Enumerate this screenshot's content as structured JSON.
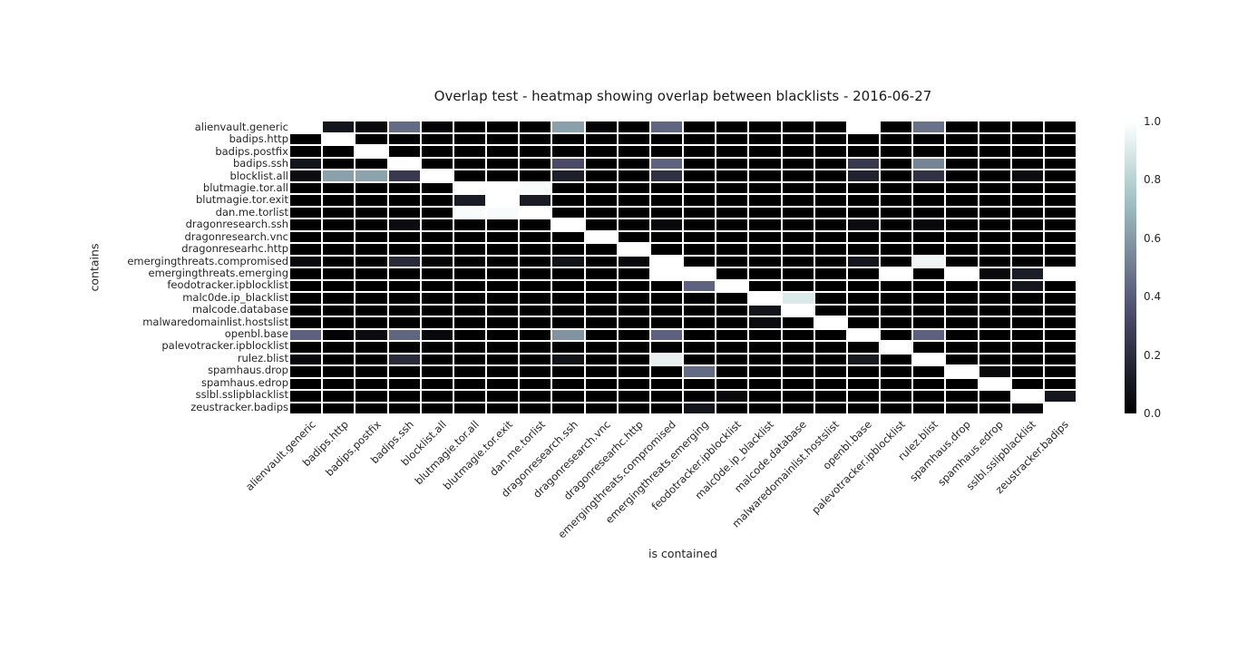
{
  "figure": {
    "background": "#ffffff",
    "text_color": "#262626"
  },
  "chart_data": {
    "type": "heatmap",
    "title": "Overlap test - heatmap showing overlap between blacklists - 2016-06-27",
    "xlabel": "is contained",
    "ylabel": "contains",
    "colormap": "bone",
    "value_range": [
      0.0,
      1.0
    ],
    "grid_gap_color": "#ffffff",
    "categories": [
      "alienvault.generic",
      "badips.http",
      "badips.postfix",
      "badips.ssh",
      "blocklist.all",
      "blutmagie.tor.all",
      "blutmagie.tor.exit",
      "dan.me.torlist",
      "dragonresearch.ssh",
      "dragonresearch.vnc",
      "dragonresearhc.http",
      "emergingthreats.compromised",
      "emergingthreats.emerging",
      "feodotracker.ipblocklist",
      "malc0de.ip_blacklist",
      "malcode.database",
      "malwaredomainlist.hostslist",
      "openbl.base",
      "palevotracker.ipblocklist",
      "rulez.blist",
      "spamhaus.drop",
      "spamhaus.edrop",
      "sslbl.sslipblacklist",
      "zeustracker.badips"
    ],
    "matrix": [
      [
        1,
        0.09,
        0.04,
        0.45,
        0.02,
        0,
        0,
        0,
        0.62,
        0.02,
        0,
        0.43,
        0,
        0,
        0,
        0,
        0,
        1,
        0,
        0.47,
        0,
        0,
        0,
        0
      ],
      [
        0,
        1,
        0,
        0,
        0,
        0,
        0,
        0,
        0,
        0,
        0,
        0,
        0,
        0,
        0,
        0,
        0,
        0,
        0,
        0,
        0,
        0,
        0,
        0
      ],
      [
        0,
        0,
        1,
        0,
        0,
        0,
        0,
        0,
        0,
        0,
        0,
        0,
        0,
        0,
        0,
        0,
        0,
        0,
        0,
        0,
        0,
        0,
        0,
        0
      ],
      [
        0.09,
        0,
        0,
        1,
        0,
        0,
        0,
        0,
        0.33,
        0,
        0,
        0.42,
        0,
        0,
        0,
        0,
        0,
        0.25,
        0,
        0.53,
        0,
        0,
        0,
        0
      ],
      [
        0.05,
        0.62,
        0.63,
        0.25,
        1,
        0,
        0,
        0,
        0.14,
        0,
        0,
        0.22,
        0,
        0,
        0,
        0,
        0,
        0.15,
        0,
        0.22,
        0,
        0,
        0.05,
        0
      ],
      [
        0,
        0,
        0,
        0,
        0,
        1,
        1,
        0.98,
        0,
        0,
        0,
        0,
        0,
        0,
        0,
        0,
        0,
        0,
        0,
        0,
        0,
        0,
        0,
        0
      ],
      [
        0,
        0,
        0,
        0,
        0,
        0.12,
        1,
        0.12,
        0,
        0,
        0,
        0,
        0,
        0,
        0,
        0,
        0,
        0,
        0,
        0,
        0,
        0,
        0,
        0
      ],
      [
        0,
        0,
        0,
        0,
        0,
        0.98,
        0.98,
        1,
        0,
        0,
        0,
        0,
        0,
        0,
        0,
        0,
        0,
        0,
        0,
        0,
        0,
        0,
        0,
        0
      ],
      [
        0,
        0,
        0,
        0.05,
        0,
        0,
        0,
        0,
        1,
        0,
        0,
        0.04,
        0,
        0,
        0,
        0,
        0,
        0.05,
        0,
        0.04,
        0,
        0,
        0,
        0
      ],
      [
        0,
        0,
        0,
        0,
        0,
        0,
        0,
        0,
        0,
        1,
        0,
        0,
        0,
        0,
        0,
        0,
        0,
        0,
        0,
        0,
        0,
        0,
        0,
        0
      ],
      [
        0,
        0,
        0,
        0,
        0,
        0,
        0,
        0,
        0,
        0,
        1,
        0,
        0,
        0,
        0,
        0,
        0,
        0,
        0,
        0,
        0,
        0,
        0,
        0
      ],
      [
        0.04,
        0,
        0,
        0.19,
        0.02,
        0,
        0,
        0,
        0.08,
        0,
        0.04,
        1,
        0,
        0,
        0,
        0,
        0,
        0.1,
        0,
        0.95,
        0,
        0,
        0,
        0
      ],
      [
        0,
        0,
        0,
        0,
        0,
        0,
        0,
        0,
        0,
        0,
        0,
        1,
        1,
        0,
        0,
        0,
        0,
        0,
        1,
        0,
        1,
        0.04,
        0.13,
        1
      ],
      [
        0,
        0,
        0,
        0,
        0,
        0,
        0,
        0,
        0,
        0,
        0,
        0,
        0.42,
        1,
        0,
        0,
        0,
        0,
        0,
        0,
        0,
        0,
        0.1,
        0
      ],
      [
        0,
        0,
        0,
        0,
        0,
        0,
        0,
        0,
        0,
        0,
        0,
        0,
        0,
        0,
        1,
        0.9,
        0,
        0,
        0,
        0,
        0,
        0,
        0,
        0
      ],
      [
        0,
        0,
        0,
        0,
        0,
        0,
        0,
        0,
        0,
        0,
        0,
        0,
        0,
        0,
        0.09,
        1,
        0,
        0,
        0,
        0,
        0,
        0,
        0,
        0
      ],
      [
        0,
        0,
        0,
        0,
        0,
        0,
        0,
        0,
        0,
        0,
        0,
        0,
        0,
        0,
        0.05,
        0,
        1,
        0,
        0,
        0,
        0,
        0,
        0,
        0
      ],
      [
        0.42,
        0.02,
        0.05,
        0.43,
        0.04,
        0,
        0,
        0,
        0.58,
        0,
        0,
        0.42,
        0,
        0,
        0,
        0,
        0,
        1,
        0,
        0.42,
        0,
        0,
        0,
        0
      ],
      [
        0,
        0,
        0,
        0,
        0,
        0,
        0,
        0,
        0,
        0,
        0,
        0,
        0,
        0,
        0,
        0,
        0,
        0,
        1,
        0,
        0,
        0,
        0,
        0
      ],
      [
        0.04,
        0,
        0,
        0.19,
        0,
        0,
        0,
        0,
        0.08,
        0,
        0,
        0.93,
        0,
        0,
        0,
        0,
        0,
        0.11,
        0,
        1,
        0,
        0,
        0,
        0
      ],
      [
        0,
        0,
        0,
        0,
        0,
        0,
        0,
        0,
        0,
        0,
        0,
        0,
        0.45,
        0,
        0,
        0,
        0,
        0,
        0,
        0,
        1,
        0.04,
        0,
        0
      ],
      [
        0,
        0,
        0,
        0,
        0,
        0,
        0,
        0,
        0,
        0,
        0,
        0,
        0,
        0,
        0,
        0,
        0,
        0,
        0,
        0,
        0,
        1,
        0,
        0
      ],
      [
        0,
        0,
        0,
        0,
        0,
        0,
        0,
        0,
        0,
        0,
        0,
        0,
        0,
        0.04,
        0,
        0,
        0,
        0,
        0,
        0,
        0,
        0,
        1,
        0.1
      ],
      [
        0,
        0,
        0,
        0,
        0,
        0,
        0,
        0,
        0,
        0,
        0,
        0,
        0.09,
        0,
        0,
        0,
        0,
        0,
        0,
        0,
        0,
        0,
        0.03,
        1
      ]
    ],
    "colorbar": {
      "position": "right",
      "ticks": [
        {
          "label": "1.0",
          "value": 1.0
        },
        {
          "label": "0.8",
          "value": 0.8
        },
        {
          "label": "0.6",
          "value": 0.6
        },
        {
          "label": "0.4",
          "value": 0.4
        },
        {
          "label": "0.2",
          "value": 0.2
        },
        {
          "label": "0.0",
          "value": 0.0
        }
      ],
      "gradient_stops": [
        "#000000",
        "#2d2d3e",
        "#595c79",
        "#869aa6",
        "#b9d2d2",
        "#ffffff"
      ]
    }
  }
}
